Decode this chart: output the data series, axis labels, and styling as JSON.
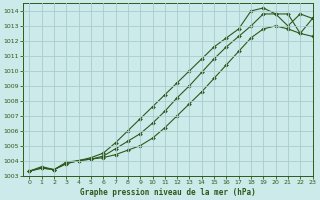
{
  "title": "Graphe pression niveau de la mer (hPa)",
  "bg_color": "#cceaea",
  "grid_color": "#aacccc",
  "line_color": "#2d5a1b",
  "xlim": [
    -0.5,
    23
  ],
  "ylim": [
    1003,
    1014.5
  ],
  "xticks": [
    0,
    1,
    2,
    3,
    4,
    5,
    6,
    7,
    8,
    9,
    10,
    11,
    12,
    13,
    14,
    15,
    16,
    17,
    18,
    19,
    20,
    21,
    22,
    23
  ],
  "yticks": [
    1003,
    1004,
    1005,
    1006,
    1007,
    1008,
    1009,
    1010,
    1011,
    1012,
    1013,
    1014
  ],
  "line1_x": [
    0,
    1,
    2,
    3,
    4,
    5,
    6,
    7,
    8,
    9,
    10,
    11,
    12,
    13,
    14,
    15,
    16,
    17,
    18,
    19,
    20,
    21,
    22,
    23
  ],
  "line1_y": [
    1003.3,
    1003.5,
    1003.4,
    1003.8,
    1004.0,
    1004.1,
    1004.2,
    1004.4,
    1004.7,
    1005.0,
    1005.5,
    1006.2,
    1007.0,
    1007.8,
    1008.6,
    1009.5,
    1010.4,
    1011.3,
    1012.2,
    1012.8,
    1013.0,
    1012.8,
    1012.5,
    1012.3
  ],
  "line2_x": [
    0,
    1,
    2,
    3,
    4,
    5,
    6,
    7,
    8,
    9,
    10,
    11,
    12,
    13,
    14,
    15,
    16,
    17,
    18,
    19,
    20,
    21,
    22,
    23
  ],
  "line2_y": [
    1003.3,
    1003.5,
    1003.4,
    1003.8,
    1004.0,
    1004.1,
    1004.3,
    1004.8,
    1005.3,
    1005.8,
    1006.5,
    1007.3,
    1008.2,
    1009.0,
    1009.9,
    1010.8,
    1011.6,
    1012.3,
    1013.0,
    1013.8,
    1013.8,
    1013.0,
    1013.8,
    1013.5
  ],
  "line3_x": [
    0,
    1,
    2,
    3,
    4,
    5,
    6,
    7,
    8,
    9,
    10,
    11,
    12,
    13,
    14,
    15,
    16,
    17,
    18,
    19,
    20,
    21,
    22,
    23
  ],
  "line3_y": [
    1003.3,
    1003.6,
    1003.4,
    1003.9,
    1004.0,
    1004.2,
    1004.5,
    1005.2,
    1006.0,
    1006.8,
    1007.6,
    1008.4,
    1009.2,
    1010.0,
    1010.8,
    1011.6,
    1012.2,
    1012.8,
    1014.0,
    1014.2,
    1013.8,
    1013.8,
    1012.5,
    1013.5
  ]
}
